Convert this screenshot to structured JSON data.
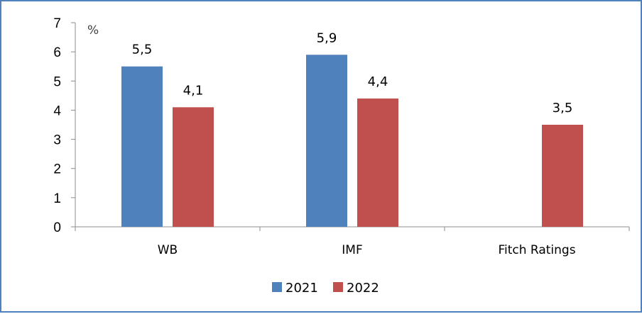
{
  "chart_data": {
    "type": "bar",
    "title": "",
    "xlabel": "",
    "ylabel": "",
    "unit_label": "%",
    "categories": [
      "WB",
      "IMF",
      "Fitch Ratings"
    ],
    "series": [
      {
        "name": "2021",
        "color": "#4f81bd",
        "values": [
          5.5,
          5.9,
          null
        ],
        "labels": [
          "5,5",
          "5,9",
          ""
        ]
      },
      {
        "name": "2022",
        "color": "#c0504d",
        "values": [
          4.1,
          4.4,
          3.5
        ],
        "labels": [
          "4,1",
          "4,4",
          "3,5"
        ]
      }
    ],
    "yticks": [
      "0",
      "1",
      "2",
      "3",
      "4",
      "5",
      "6",
      "7"
    ],
    "ylim": [
      0,
      7
    ],
    "grid": false,
    "legend_position": "bottom"
  }
}
